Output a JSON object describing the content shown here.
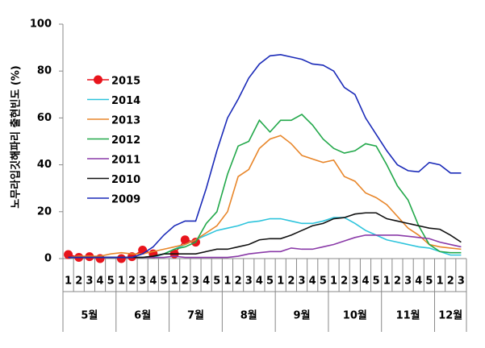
{
  "chart_data": {
    "type": "line",
    "y_label": "노무라입깃해파리 출현빈도 (%)",
    "categories": [
      "1",
      "2",
      "3",
      "4",
      "5",
      "1",
      "2",
      "3",
      "4",
      "5",
      "1",
      "2",
      "3",
      "4",
      "5",
      "1",
      "2",
      "3",
      "4",
      "5",
      "1",
      "2",
      "3",
      "4",
      "5",
      "1",
      "2",
      "3",
      "4",
      "5",
      "1",
      "2",
      "3",
      "4",
      "5",
      "1",
      "2",
      "3"
    ],
    "groups": [
      "5월",
      "6월",
      "7월",
      "8월",
      "9월",
      "10월",
      "11월",
      "12월"
    ],
    "ylim": [
      0,
      100
    ],
    "yticks": [
      0,
      20,
      40,
      60,
      80,
      100
    ],
    "series": [
      {
        "name": "2015",
        "color": "#e8141c",
        "marker": "circle",
        "values": [
          1.7,
          0.5,
          0.8,
          0,
          null,
          0,
          0.8,
          3.6,
          2,
          null,
          2,
          8,
          7,
          null,
          null,
          null,
          null,
          null,
          null,
          null,
          null,
          null,
          null,
          null,
          null,
          null,
          null,
          null,
          null,
          null,
          null,
          null,
          null,
          null,
          null,
          null,
          null,
          null
        ]
      },
      {
        "name": "2014",
        "color": "#2ec4dc",
        "values": [
          0.5,
          0.5,
          0.5,
          0.5,
          0.5,
          0.5,
          0.5,
          0.5,
          0.5,
          2,
          4,
          6,
          8,
          10,
          12,
          13,
          14,
          15.5,
          16,
          17,
          17,
          16,
          15,
          15,
          16,
          17.5,
          17.5,
          15,
          12,
          10,
          8,
          7,
          6,
          5,
          4.5,
          3,
          1.5,
          1.5
        ]
      },
      {
        "name": "2013",
        "color": "#e8862a",
        "values": [
          0.5,
          1,
          1,
          1,
          2,
          2.5,
          2,
          2,
          3,
          4,
          5,
          6,
          8,
          11,
          14,
          20,
          35,
          38,
          47,
          51,
          52.5,
          49,
          44,
          42.5,
          41,
          42,
          35,
          33,
          28,
          26,
          23,
          18,
          13,
          10,
          6,
          5,
          4.5,
          4
        ]
      },
      {
        "name": "2012",
        "color": "#22a84a",
        "values": [
          0.5,
          0.5,
          0.5,
          0.5,
          0.5,
          0.5,
          0.5,
          0.5,
          1,
          2,
          4,
          5,
          7,
          15,
          20,
          36,
          48,
          50,
          59,
          54,
          59,
          59,
          61.5,
          57,
          51,
          47,
          45,
          46,
          49,
          48,
          40,
          31,
          25,
          14,
          6,
          3,
          2.5,
          2.5
        ]
      },
      {
        "name": "2011",
        "color": "#8a3aa8",
        "values": [
          0.5,
          0.5,
          0.5,
          0.5,
          0.5,
          0.5,
          0.5,
          0.5,
          0.5,
          0.5,
          1,
          0.5,
          0.5,
          0.5,
          0.5,
          0.5,
          1,
          2,
          2.5,
          3,
          3,
          4.5,
          4,
          4,
          5,
          6,
          7.5,
          9,
          10,
          10,
          10,
          10,
          9.5,
          9,
          8.5,
          7,
          6,
          5
        ]
      },
      {
        "name": "2010",
        "color": "#111111",
        "values": [
          0.5,
          0.5,
          0.5,
          0.5,
          0.5,
          0.5,
          0.5,
          0.5,
          1,
          2,
          2,
          2,
          2,
          3,
          4,
          4,
          5,
          6,
          8,
          8.5,
          8.5,
          10,
          12,
          14,
          15,
          17,
          17.5,
          19,
          19.5,
          19.5,
          17,
          16,
          15,
          14,
          13,
          12.5,
          10,
          7
        ]
      },
      {
        "name": "2009",
        "color": "#1a2ab8",
        "values": [
          0.5,
          0.5,
          0.5,
          0.5,
          0.5,
          0.5,
          0.5,
          2,
          5,
          10,
          14,
          16,
          16,
          30,
          46,
          60,
          68,
          77,
          83,
          86.5,
          87,
          86,
          85,
          83,
          82.5,
          80,
          73,
          70,
          60,
          53,
          46,
          40,
          37.5,
          37,
          41,
          40,
          36.5,
          36.5
        ]
      }
    ]
  }
}
